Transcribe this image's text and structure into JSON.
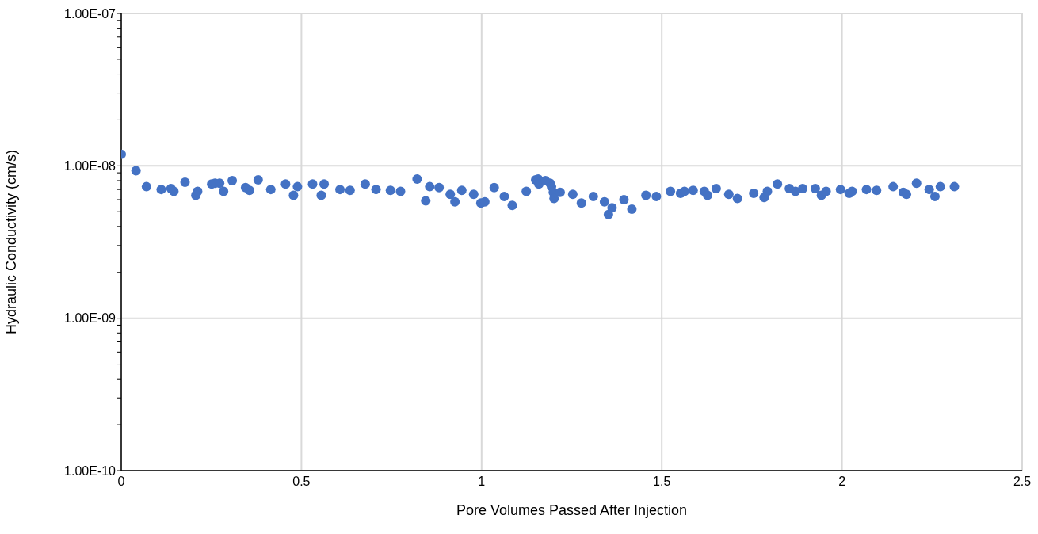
{
  "chart_data": {
    "type": "scatter",
    "xlabel": "Pore Volumes Passed After Injection",
    "ylabel": "Hydraulic Conductivity (cm/s)",
    "log": "y",
    "grid": true,
    "marker": "circle",
    "legend": false,
    "xlim": [
      0,
      2.5
    ],
    "xticks": [
      0,
      0.5,
      1,
      1.5,
      2,
      2.5
    ],
    "ylim": [
      1e-10,
      1e-07
    ],
    "yticks": [
      {
        "value": 1e-10,
        "label": "1.00E-10"
      },
      {
        "value": 2e-10,
        "label": null
      },
      {
        "value": 3e-10,
        "label": null
      },
      {
        "value": 4e-10,
        "label": null
      },
      {
        "value": 5e-10,
        "label": null
      },
      {
        "value": 6e-10,
        "label": null
      },
      {
        "value": 7e-10,
        "label": null
      },
      {
        "value": 8e-10,
        "label": null
      },
      {
        "value": 9e-10,
        "label": null
      },
      {
        "value": 1e-09,
        "label": "1.00E-09"
      },
      {
        "value": 2e-09,
        "label": null
      },
      {
        "value": 3e-09,
        "label": null
      },
      {
        "value": 4e-09,
        "label": null
      },
      {
        "value": 5e-09,
        "label": null
      },
      {
        "value": 6e-09,
        "label": null
      },
      {
        "value": 7e-09,
        "label": null
      },
      {
        "value": 8e-09,
        "label": null
      },
      {
        "value": 9e-09,
        "label": null
      },
      {
        "value": 1e-08,
        "label": "1.00E-08"
      },
      {
        "value": 2e-08,
        "label": null
      },
      {
        "value": 3e-08,
        "label": null
      },
      {
        "value": 4e-08,
        "label": null
      },
      {
        "value": 5e-08,
        "label": null
      },
      {
        "value": 6e-08,
        "label": null
      },
      {
        "value": 7e-08,
        "label": null
      },
      {
        "value": 8e-08,
        "label": null
      },
      {
        "value": 9e-08,
        "label": null
      },
      {
        "value": 1e-07,
        "label": "1.00E-07"
      }
    ],
    "series": [
      {
        "color": "#4472c4",
        "x": [
          0,
          0.041,
          0.07,
          0.111,
          0.138,
          0.146,
          0.177,
          0.207,
          0.212,
          0.251,
          0.26,
          0.273,
          0.284,
          0.308,
          0.345,
          0.356,
          0.38,
          0.415,
          0.456,
          0.478,
          0.489,
          0.531,
          0.555,
          0.563,
          0.607,
          0.635,
          0.677,
          0.707,
          0.747,
          0.775,
          0.821,
          0.845,
          0.856,
          0.882,
          0.913,
          0.926,
          0.945,
          0.978,
          0.998,
          1.009,
          1.035,
          1.063,
          1.085,
          1.124,
          1.15,
          1.157,
          1.159,
          1.177,
          1.19,
          1.194,
          1.199,
          1.201,
          1.218,
          1.253,
          1.277,
          1.31,
          1.341,
          1.352,
          1.362,
          1.395,
          1.417,
          1.456,
          1.485,
          1.524,
          1.552,
          1.563,
          1.587,
          1.618,
          1.627,
          1.651,
          1.686,
          1.71,
          1.755,
          1.784,
          1.793,
          1.821,
          1.854,
          1.871,
          1.891,
          1.926,
          1.943,
          1.956,
          1.996,
          2.02,
          2.028,
          2.068,
          2.096,
          2.142,
          2.17,
          2.179,
          2.207,
          2.242,
          2.258,
          2.273,
          2.312
        ],
        "values": [
          1.19e-08,
          9.3e-09,
          7.3e-09,
          7e-09,
          7.1e-09,
          6.8e-09,
          7.8e-09,
          6.4e-09,
          6.8e-09,
          7.6e-09,
          7.7e-09,
          7.7e-09,
          6.8e-09,
          8e-09,
          7.2e-09,
          6.9e-09,
          8.1e-09,
          7e-09,
          7.6e-09,
          6.4e-09,
          7.3e-09,
          7.6e-09,
          6.4e-09,
          7.6e-09,
          7e-09,
          6.9e-09,
          7.6e-09,
          7e-09,
          6.9e-09,
          6.8e-09,
          8.2e-09,
          5.9e-09,
          7.3e-09,
          7.2e-09,
          6.5e-09,
          5.8e-09,
          6.9e-09,
          6.5e-09,
          5.7e-09,
          5.8e-09,
          7.2e-09,
          6.3e-09,
          5.5e-09,
          6.8e-09,
          8.1e-09,
          8.2e-09,
          7.6e-09,
          8e-09,
          7.7e-09,
          7.3e-09,
          6.7e-09,
          6.1e-09,
          6.7e-09,
          6.5e-09,
          5.7e-09,
          6.3e-09,
          5.8e-09,
          4.8e-09,
          5.3e-09,
          6e-09,
          5.2e-09,
          6.4e-09,
          6.3e-09,
          6.8e-09,
          6.6e-09,
          6.8e-09,
          6.9e-09,
          6.8e-09,
          6.4e-09,
          7.1e-09,
          6.5e-09,
          6.1e-09,
          6.6e-09,
          6.2e-09,
          6.8e-09,
          7.6e-09,
          7.1e-09,
          6.8e-09,
          7.1e-09,
          7.1e-09,
          6.4e-09,
          6.8e-09,
          7e-09,
          6.6e-09,
          6.8e-09,
          7e-09,
          6.9e-09,
          7.3e-09,
          6.7e-09,
          6.5e-09,
          7.7e-09,
          7e-09,
          6.3e-09,
          7.3e-09,
          7.3e-09
        ]
      }
    ]
  }
}
